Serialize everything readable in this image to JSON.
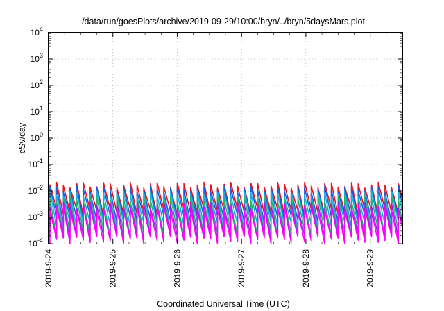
{
  "chart_data": {
    "type": "line",
    "title": "/data/run/goesPlots/archive/2019-09-29/10:00/bryn/../bryn/5daysMars.plot",
    "xlabel": "Coordinated Universal Time (UTC)",
    "ylabel": "cSv/day",
    "y_scale": "log",
    "ylim": [
      0.0001,
      10000
    ],
    "xlim": [
      "2019-09-24T00:00",
      "2019-09-29T12:00"
    ],
    "x_ticks": [
      "2019-9-24",
      "2019-9-25",
      "2019-9-26",
      "2019-9-27",
      "2019-9-28",
      "2019-9-29"
    ],
    "y_ticks": [
      {
        "value": 0.0001,
        "base": "10",
        "exp": "-4"
      },
      {
        "value": 0.001,
        "base": "10",
        "exp": "-3"
      },
      {
        "value": 0.01,
        "base": "10",
        "exp": "-2"
      },
      {
        "value": 0.1,
        "base": "10",
        "exp": "-1"
      },
      {
        "value": 1,
        "base": "10",
        "exp": "0"
      },
      {
        "value": 10,
        "base": "10",
        "exp": "1"
      },
      {
        "value": 100,
        "base": "10",
        "exp": "2"
      },
      {
        "value": 1000,
        "base": "10",
        "exp": "3"
      },
      {
        "value": 10000,
        "base": "10",
        "exp": "4"
      }
    ],
    "grid": true,
    "legend": "none",
    "pattern": {
      "description": "sawtooth: instantaneous rise to peak followed by exponential decay, repeating",
      "period_hours": 2.5,
      "start": "2019-09-24T00:30"
    },
    "series": [
      {
        "color": "#e8141c",
        "peak": 0.017,
        "trough": 0.0016
      },
      {
        "color": "#1a5fe0",
        "peak": 0.012,
        "trough": 0.0009
      },
      {
        "color": "#16b0e0",
        "peak": 0.008,
        "trough": 0.0005
      },
      {
        "color": "#1ab86a",
        "peak": 0.005,
        "trough": 0.00025
      },
      {
        "color": "#8a2be2",
        "peak": 0.003,
        "trough": 0.00018
      },
      {
        "color": "#ff00ff",
        "peak": 0.0022,
        "trough": 0.00014
      }
    ]
  }
}
